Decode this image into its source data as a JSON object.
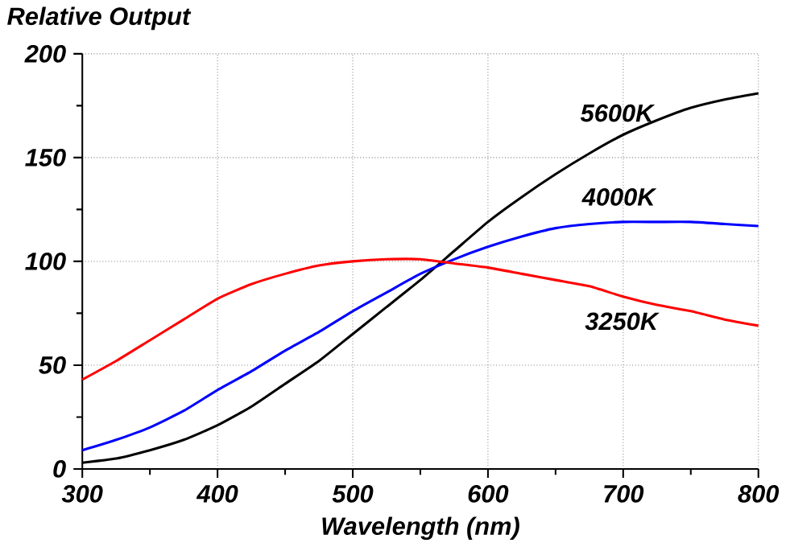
{
  "chart_data": {
    "type": "line",
    "xlabel": "Wavelength (nm)",
    "ylabel": "Relative Output",
    "x": [
      300,
      325,
      350,
      375,
      400,
      425,
      450,
      475,
      500,
      525,
      550,
      575,
      600,
      625,
      650,
      675,
      700,
      725,
      750,
      775,
      800
    ],
    "series": [
      {
        "name": "5600K",
        "color": "#000000",
        "values": [
          3,
          5,
          9,
          14,
          21,
          30,
          41,
          52,
          65,
          78,
          91,
          105,
          119,
          131,
          142,
          152,
          161,
          168,
          174,
          178,
          181
        ]
      },
      {
        "name": "4000K",
        "color": "#0000ff",
        "values": [
          9,
          14,
          20,
          28,
          38,
          47,
          57,
          66,
          76,
          85,
          94,
          101,
          107,
          112,
          116,
          118,
          119,
          119,
          119,
          118,
          117
        ]
      },
      {
        "name": "3250K",
        "color": "#ff0000",
        "values": [
          43,
          52,
          62,
          72,
          82,
          89,
          94,
          98,
          100,
          101,
          101,
          99,
          97,
          94,
          91,
          88,
          83,
          79,
          76,
          72,
          69
        ]
      }
    ],
    "xlim": [
      300,
      800
    ],
    "ylim": [
      0,
      200
    ],
    "xticks": [
      300,
      400,
      500,
      600,
      700,
      800
    ],
    "yticks": [
      0,
      50,
      100,
      150,
      200
    ],
    "grid": true,
    "legend": false,
    "marker": "none",
    "line_style": "solid"
  }
}
